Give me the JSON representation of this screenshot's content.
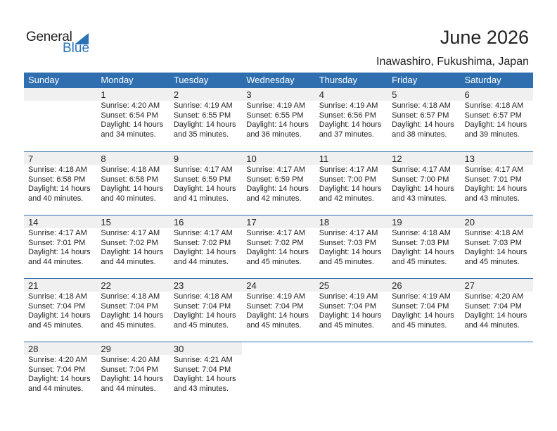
{
  "logo": {
    "general": "General",
    "blue": "Blue"
  },
  "title": "June 2026",
  "location": "Inawashiro, Fukushima, Japan",
  "colors": {
    "header": "#2f6fb0",
    "brand": "#2a72b8",
    "day_band": "#f0f0f0"
  },
  "weekdays": [
    "Sunday",
    "Monday",
    "Tuesday",
    "Wednesday",
    "Thursday",
    "Friday",
    "Saturday"
  ],
  "weeks": [
    [
      null,
      {
        "day": "1",
        "sunrise": "Sunrise: 4:20 AM",
        "sunset": "Sunset: 6:54 PM",
        "daylight": "Daylight: 14 hours",
        "minutes": "and 34 minutes."
      },
      {
        "day": "2",
        "sunrise": "Sunrise: 4:19 AM",
        "sunset": "Sunset: 6:55 PM",
        "daylight": "Daylight: 14 hours",
        "minutes": "and 35 minutes."
      },
      {
        "day": "3",
        "sunrise": "Sunrise: 4:19 AM",
        "sunset": "Sunset: 6:55 PM",
        "daylight": "Daylight: 14 hours",
        "minutes": "and 36 minutes."
      },
      {
        "day": "4",
        "sunrise": "Sunrise: 4:19 AM",
        "sunset": "Sunset: 6:56 PM",
        "daylight": "Daylight: 14 hours",
        "minutes": "and 37 minutes."
      },
      {
        "day": "5",
        "sunrise": "Sunrise: 4:18 AM",
        "sunset": "Sunset: 6:57 PM",
        "daylight": "Daylight: 14 hours",
        "minutes": "and 38 minutes."
      },
      {
        "day": "6",
        "sunrise": "Sunrise: 4:18 AM",
        "sunset": "Sunset: 6:57 PM",
        "daylight": "Daylight: 14 hours",
        "minutes": "and 39 minutes."
      }
    ],
    [
      {
        "day": "7",
        "sunrise": "Sunrise: 4:18 AM",
        "sunset": "Sunset: 6:58 PM",
        "daylight": "Daylight: 14 hours",
        "minutes": "and 40 minutes."
      },
      {
        "day": "8",
        "sunrise": "Sunrise: 4:18 AM",
        "sunset": "Sunset: 6:58 PM",
        "daylight": "Daylight: 14 hours",
        "minutes": "and 40 minutes."
      },
      {
        "day": "9",
        "sunrise": "Sunrise: 4:17 AM",
        "sunset": "Sunset: 6:59 PM",
        "daylight": "Daylight: 14 hours",
        "minutes": "and 41 minutes."
      },
      {
        "day": "10",
        "sunrise": "Sunrise: 4:17 AM",
        "sunset": "Sunset: 6:59 PM",
        "daylight": "Daylight: 14 hours",
        "minutes": "and 42 minutes."
      },
      {
        "day": "11",
        "sunrise": "Sunrise: 4:17 AM",
        "sunset": "Sunset: 7:00 PM",
        "daylight": "Daylight: 14 hours",
        "minutes": "and 42 minutes."
      },
      {
        "day": "12",
        "sunrise": "Sunrise: 4:17 AM",
        "sunset": "Sunset: 7:00 PM",
        "daylight": "Daylight: 14 hours",
        "minutes": "and 43 minutes."
      },
      {
        "day": "13",
        "sunrise": "Sunrise: 4:17 AM",
        "sunset": "Sunset: 7:01 PM",
        "daylight": "Daylight: 14 hours",
        "minutes": "and 43 minutes."
      }
    ],
    [
      {
        "day": "14",
        "sunrise": "Sunrise: 4:17 AM",
        "sunset": "Sunset: 7:01 PM",
        "daylight": "Daylight: 14 hours",
        "minutes": "and 44 minutes."
      },
      {
        "day": "15",
        "sunrise": "Sunrise: 4:17 AM",
        "sunset": "Sunset: 7:02 PM",
        "daylight": "Daylight: 14 hours",
        "minutes": "and 44 minutes."
      },
      {
        "day": "16",
        "sunrise": "Sunrise: 4:17 AM",
        "sunset": "Sunset: 7:02 PM",
        "daylight": "Daylight: 14 hours",
        "minutes": "and 44 minutes."
      },
      {
        "day": "17",
        "sunrise": "Sunrise: 4:17 AM",
        "sunset": "Sunset: 7:02 PM",
        "daylight": "Daylight: 14 hours",
        "minutes": "and 45 minutes."
      },
      {
        "day": "18",
        "sunrise": "Sunrise: 4:17 AM",
        "sunset": "Sunset: 7:03 PM",
        "daylight": "Daylight: 14 hours",
        "minutes": "and 45 minutes."
      },
      {
        "day": "19",
        "sunrise": "Sunrise: 4:18 AM",
        "sunset": "Sunset: 7:03 PM",
        "daylight": "Daylight: 14 hours",
        "minutes": "and 45 minutes."
      },
      {
        "day": "20",
        "sunrise": "Sunrise: 4:18 AM",
        "sunset": "Sunset: 7:03 PM",
        "daylight": "Daylight: 14 hours",
        "minutes": "and 45 minutes."
      }
    ],
    [
      {
        "day": "21",
        "sunrise": "Sunrise: 4:18 AM",
        "sunset": "Sunset: 7:04 PM",
        "daylight": "Daylight: 14 hours",
        "minutes": "and 45 minutes."
      },
      {
        "day": "22",
        "sunrise": "Sunrise: 4:18 AM",
        "sunset": "Sunset: 7:04 PM",
        "daylight": "Daylight: 14 hours",
        "minutes": "and 45 minutes."
      },
      {
        "day": "23",
        "sunrise": "Sunrise: 4:18 AM",
        "sunset": "Sunset: 7:04 PM",
        "daylight": "Daylight: 14 hours",
        "minutes": "and 45 minutes."
      },
      {
        "day": "24",
        "sunrise": "Sunrise: 4:19 AM",
        "sunset": "Sunset: 7:04 PM",
        "daylight": "Daylight: 14 hours",
        "minutes": "and 45 minutes."
      },
      {
        "day": "25",
        "sunrise": "Sunrise: 4:19 AM",
        "sunset": "Sunset: 7:04 PM",
        "daylight": "Daylight: 14 hours",
        "minutes": "and 45 minutes."
      },
      {
        "day": "26",
        "sunrise": "Sunrise: 4:19 AM",
        "sunset": "Sunset: 7:04 PM",
        "daylight": "Daylight: 14 hours",
        "minutes": "and 45 minutes."
      },
      {
        "day": "27",
        "sunrise": "Sunrise: 4:20 AM",
        "sunset": "Sunset: 7:04 PM",
        "daylight": "Daylight: 14 hours",
        "minutes": "and 44 minutes."
      }
    ],
    [
      {
        "day": "28",
        "sunrise": "Sunrise: 4:20 AM",
        "sunset": "Sunset: 7:04 PM",
        "daylight": "Daylight: 14 hours",
        "minutes": "and 44 minutes."
      },
      {
        "day": "29",
        "sunrise": "Sunrise: 4:20 AM",
        "sunset": "Sunset: 7:04 PM",
        "daylight": "Daylight: 14 hours",
        "minutes": "and 44 minutes."
      },
      {
        "day": "30",
        "sunrise": "Sunrise: 4:21 AM",
        "sunset": "Sunset: 7:04 PM",
        "daylight": "Daylight: 14 hours",
        "minutes": "and 43 minutes."
      },
      null,
      null,
      null,
      null
    ]
  ]
}
